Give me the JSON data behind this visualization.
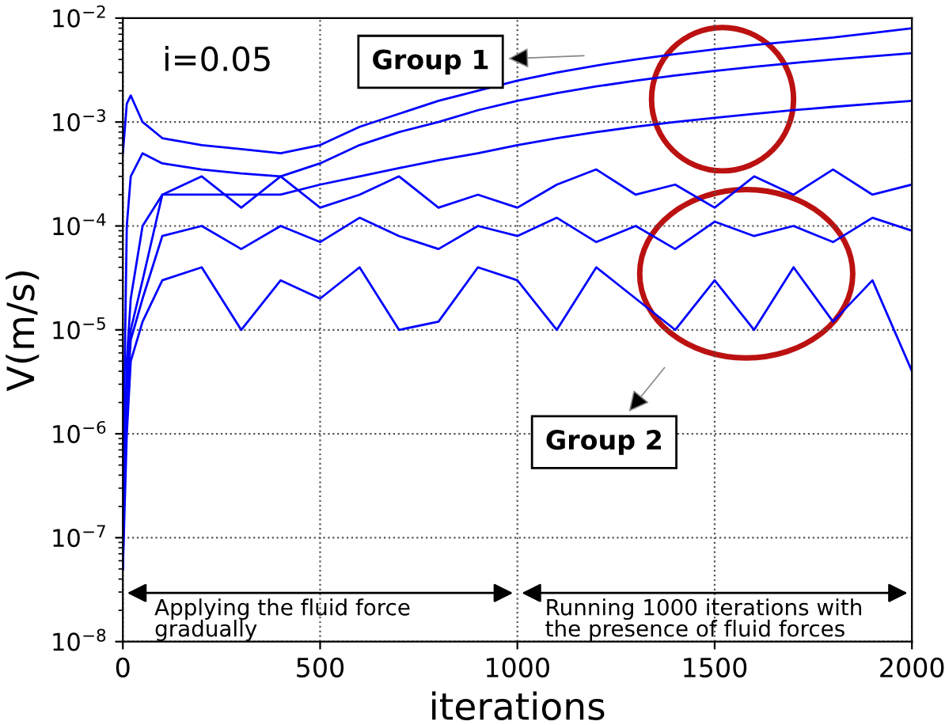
{
  "chart_data": {
    "type": "line",
    "xlabel": "iterations",
    "ylabel": "V(m/s)",
    "log": "y",
    "grid": true,
    "marker": "none",
    "line_style": "solid",
    "x": [
      0,
      10,
      20,
      50,
      100,
      200,
      300,
      400,
      500,
      600,
      700,
      800,
      900,
      1000,
      1100,
      1200,
      1300,
      1400,
      1500,
      1600,
      1700,
      1800,
      1900,
      2000
    ],
    "series": [
      {
        "color": "#0000ff",
        "values": [
          0.0005,
          0.0015,
          0.0018,
          0.001,
          0.0007,
          0.0006,
          0.00055,
          0.0005,
          0.0006,
          0.0009,
          0.0012,
          0.0016,
          0.002,
          0.0025,
          0.003,
          0.0035,
          0.004,
          0.0045,
          0.005,
          0.0055,
          0.006,
          0.0065,
          0.0072,
          0.008
        ]
      },
      {
        "color": "#0000ff",
        "values": [
          3e-07,
          0.0001,
          0.0003,
          0.0005,
          0.0004,
          0.00035,
          0.00032,
          0.0003,
          0.0004,
          0.0006,
          0.0008,
          0.001,
          0.0013,
          0.0016,
          0.0019,
          0.0022,
          0.0025,
          0.0028,
          0.0031,
          0.0034,
          0.0037,
          0.004,
          0.0043,
          0.0046
        ]
      },
      {
        "color": "#0000ff",
        "values": [
          5e-08,
          5e-06,
          2e-05,
          0.0001,
          0.0002,
          0.0002,
          0.0002,
          0.0002,
          0.00025,
          0.0003,
          0.00036,
          0.00043,
          0.0005,
          0.0006,
          0.0007,
          0.0008,
          0.0009,
          0.001,
          0.0011,
          0.0012,
          0.0013,
          0.0014,
          0.0015,
          0.0016
        ]
      },
      {
        "color": "#0000ff",
        "values": [
          1e-07,
          3e-06,
          1e-05,
          3e-05,
          0.0002,
          0.0003,
          0.00015,
          0.0003,
          0.00015,
          0.0002,
          0.0003,
          0.00015,
          0.0002,
          0.00015,
          0.00025,
          0.00035,
          0.0002,
          0.00025,
          0.00015,
          0.0003,
          0.0002,
          0.00035,
          0.0002,
          0.00025
        ]
      },
      {
        "color": "#0000ff",
        "values": [
          1e-07,
          2e-06,
          8e-06,
          2e-05,
          8e-05,
          0.0001,
          6e-05,
          0.0001,
          7e-05,
          0.00012,
          8e-05,
          6e-05,
          0.0001,
          8e-05,
          0.00012,
          7e-05,
          0.0001,
          6e-05,
          0.00011,
          8e-05,
          0.0001,
          7e-05,
          0.00012,
          9e-05
        ]
      },
      {
        "color": "#0000ff",
        "values": [
          5e-08,
          1e-06,
          5e-06,
          1.2e-05,
          3e-05,
          4e-05,
          1e-05,
          3e-05,
          2e-05,
          4e-05,
          1e-05,
          1.2e-05,
          4e-05,
          3e-05,
          1e-05,
          4e-05,
          2e-05,
          1e-05,
          3e-05,
          1e-05,
          4e-05,
          1.2e-05,
          3e-05,
          4e-06
        ]
      }
    ],
    "xlim": [
      0,
      2000
    ],
    "xticks": [
      0,
      500,
      1000,
      1500,
      2000
    ],
    "ylim": [
      1e-08,
      0.01
    ],
    "yticks": [
      {
        "value": 1e-08,
        "label": "10$^{−8}$"
      },
      {
        "value": 1e-07,
        "label": "10$^{−7}$"
      },
      {
        "value": 1e-06,
        "label": "10$^{−6}$"
      },
      {
        "value": 1e-05,
        "label": "10$^{−5}$"
      },
      {
        "value": 0.0001,
        "label": "10$^{−4}$"
      },
      {
        "value": 0.001,
        "label": "10$^{−3}$"
      },
      {
        "value": 0.01,
        "label": "10$^{−2}$"
      }
    ],
    "annotations": [
      "i=0.05",
      "Group 1",
      "Group 2",
      "Applying the fluid force\ngradually",
      "Running 1000 iterations with\nthe presence of fluid forces"
    ]
  }
}
